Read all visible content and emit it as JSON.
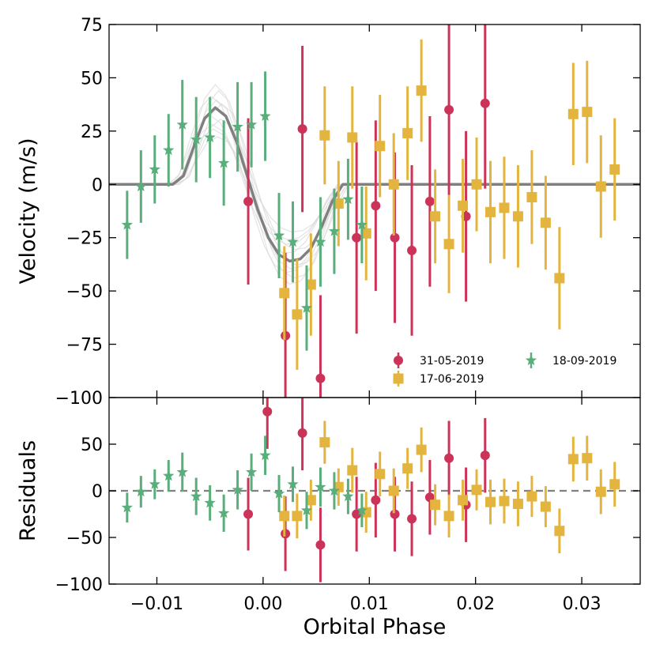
{
  "chart_data": [
    {
      "panel": "top",
      "type": "scatter",
      "xlabel": "",
      "ylabel": "Velocity (m/s)",
      "xlim": [
        -0.0145,
        0.0355
      ],
      "ylim": [
        -100,
        75
      ],
      "xticks": [
        -0.01,
        0.0,
        0.01,
        0.02,
        0.03
      ],
      "yticks": [
        -100,
        -75,
        -50,
        -25,
        0,
        25,
        50,
        75
      ],
      "ytick_labels": [
        "−100",
        "−75",
        "−50",
        "−25",
        "0",
        "25",
        "50",
        "75"
      ],
      "legend_position": "lower-right",
      "model": {
        "name": "",
        "color": "#808080",
        "x": [
          -0.0145,
          -0.0085,
          -0.0075,
          -0.0065,
          -0.0055,
          -0.0045,
          -0.0035,
          -0.0025,
          -0.0015,
          -0.0005,
          0.0005,
          0.0015,
          0.0025,
          0.0035,
          0.0045,
          0.0055,
          0.0065,
          0.0075,
          0.0085,
          0.0355
        ],
        "y": [
          0,
          0,
          4,
          18,
          31,
          36,
          32,
          20,
          4,
          -12,
          -25,
          -33,
          -36,
          -35,
          -30,
          -20,
          -8,
          0,
          0,
          0
        ]
      },
      "series": [
        {
          "name": "31-05-2019",
          "color": "#cc3358",
          "marker": "circle",
          "x": [
            -0.0014,
            0.0021,
            0.0037,
            0.0054,
            0.0088,
            0.0106,
            0.0124,
            0.014,
            0.0157,
            0.0175,
            0.0191,
            0.0209
          ],
          "y": [
            -8,
            -71,
            26,
            -91,
            -25,
            -10,
            -25,
            -31,
            -8,
            35,
            -15,
            38
          ],
          "err": [
            39,
            39,
            39,
            39,
            45,
            40,
            40,
            40,
            40,
            40,
            40,
            40
          ]
        },
        {
          "name": "17-06-2019",
          "color": "#e4b53e",
          "marker": "square",
          "x": [
            0.002,
            0.0032,
            0.0045,
            0.0058,
            0.0071,
            0.0084,
            0.0097,
            0.011,
            0.0123,
            0.0136,
            0.0149,
            0.0162,
            0.0175,
            0.0188,
            0.0201,
            0.0214,
            0.0227,
            0.024,
            0.0253,
            0.0266,
            0.0279,
            0.0292,
            0.0305,
            0.0318,
            0.0331
          ],
          "y": [
            -51,
            -61,
            -47,
            23,
            -9,
            22,
            -23,
            18,
            0,
            24,
            44,
            -15,
            -28,
            -10,
            0,
            -13,
            -11,
            -15,
            -6,
            -18,
            -44,
            33,
            34,
            -1,
            7
          ],
          "err": [
            22,
            26,
            24,
            23,
            20,
            24,
            22,
            24,
            24,
            22,
            24,
            22,
            23,
            22,
            22,
            24,
            24,
            24,
            22,
            22,
            24,
            24,
            24,
            24,
            24
          ]
        },
        {
          "name": "18-09-2019",
          "color": "#5aae7c",
          "marker": "star",
          "x": [
            -0.0128,
            -0.0115,
            -0.0102,
            -0.0089,
            -0.0076,
            -0.0063,
            -0.005,
            -0.0037,
            -0.0024,
            -0.0011,
            0.0002,
            0.0015,
            0.0028,
            0.0041,
            0.0054,
            0.0067,
            0.008,
            0.0093
          ],
          "y": [
            -19,
            -1,
            7,
            16,
            28,
            21,
            22,
            10,
            27,
            28,
            32,
            -24,
            -27,
            -58,
            -27,
            -22,
            -7,
            -19
          ],
          "err": [
            16,
            17,
            16,
            17,
            21,
            20,
            19,
            20,
            21,
            20,
            21,
            20,
            19,
            20,
            21,
            20,
            19,
            18
          ]
        }
      ]
    },
    {
      "panel": "bottom",
      "type": "scatter",
      "xlabel": "Orbital Phase",
      "ylabel": "Residuals",
      "xlim": [
        -0.0145,
        0.0355
      ],
      "ylim": [
        -100,
        100
      ],
      "xticks": [
        -0.01,
        0.0,
        0.01,
        0.02,
        0.03
      ],
      "xtick_labels": [
        "−0.01",
        "0.00",
        "0.01",
        "0.02",
        "0.03"
      ],
      "yticks": [
        -100,
        -50,
        0,
        50,
        100
      ],
      "ytick_labels": [
        "−100",
        "−50",
        "0",
        "50",
        "100"
      ],
      "zero_line": true,
      "series": [
        {
          "name": "31-05-2019",
          "color": "#cc3358",
          "marker": "circle",
          "x": [
            -0.0014,
            0.0004,
            0.0021,
            0.0037,
            0.0054,
            0.0088,
            0.0106,
            0.0124,
            0.014,
            0.0157,
            0.0175,
            0.0191,
            0.0209
          ],
          "y": [
            -25,
            85,
            -46,
            62,
            -58,
            -25,
            -10,
            -25,
            -30,
            -7,
            35,
            -15,
            38
          ],
          "err": [
            39,
            40,
            40,
            40,
            40,
            40,
            40,
            40,
            40,
            40,
            40,
            40,
            40
          ]
        },
        {
          "name": "17-06-2019",
          "color": "#e4b53e",
          "marker": "square",
          "x": [
            0.002,
            0.0032,
            0.0045,
            0.0058,
            0.0071,
            0.0084,
            0.0097,
            0.011,
            0.0123,
            0.0136,
            0.0149,
            0.0162,
            0.0175,
            0.0188,
            0.0201,
            0.0214,
            0.0227,
            0.024,
            0.0253,
            0.0266,
            0.0279,
            0.0292,
            0.0305,
            0.0318,
            0.0331
          ],
          "y": [
            -27,
            -27,
            -10,
            52,
            4,
            22,
            -23,
            18,
            0,
            24,
            44,
            -15,
            -27,
            -10,
            1,
            -12,
            -11,
            -14,
            -6,
            -17,
            -43,
            34,
            35,
            -1,
            7
          ],
          "err": [
            22,
            24,
            22,
            23,
            20,
            24,
            22,
            24,
            24,
            22,
            24,
            22,
            23,
            22,
            22,
            24,
            24,
            24,
            22,
            22,
            24,
            24,
            24,
            24,
            24
          ]
        },
        {
          "name": "18-09-2019",
          "color": "#5aae7c",
          "marker": "star",
          "x": [
            -0.0128,
            -0.0115,
            -0.0102,
            -0.0089,
            -0.0076,
            -0.0063,
            -0.005,
            -0.0037,
            -0.0024,
            -0.0011,
            0.0002,
            0.0015,
            0.0028,
            0.0041,
            0.0054,
            0.0067,
            0.008,
            0.0093
          ],
          "y": [
            -18,
            -1,
            7,
            16,
            20,
            -6,
            -13,
            -24,
            1,
            20,
            38,
            -3,
            7,
            -21,
            4,
            0,
            -6,
            -21
          ],
          "err": [
            16,
            17,
            16,
            17,
            21,
            20,
            19,
            20,
            21,
            20,
            21,
            20,
            19,
            20,
            21,
            20,
            19,
            18
          ]
        }
      ]
    }
  ]
}
